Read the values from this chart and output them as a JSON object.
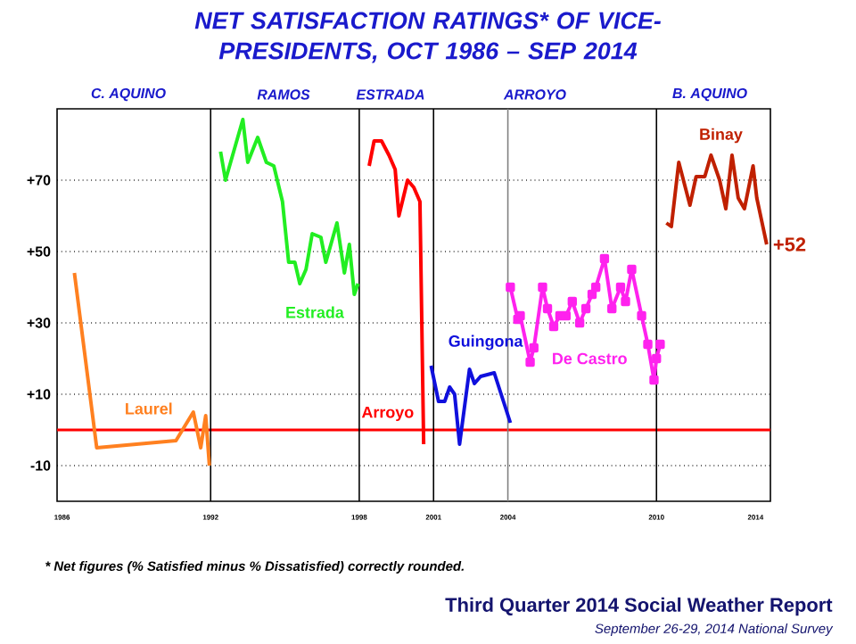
{
  "chart_data": {
    "type": "line",
    "title": "NET SATISFACTION RATINGS* OF VICE-PRESIDENTS, OCT 1986 – SEP 2014",
    "annotations": [
      "C. AQUINO",
      "RAMOS",
      "ESTRADA",
      "ARROYO",
      "B. AQUINO",
      "* Net figures (% Satisfied minus % Dissatisfied) correctly rounded.",
      "Third Quarter 2014 Social Weather Report",
      "September 26-29, 2014 National Survey"
    ],
    "xlim": [
      1985.8,
      2014.6
    ],
    "ylim": [
      -20,
      90
    ],
    "xticks": [
      1986,
      1992,
      1998,
      2001,
      2004,
      2010,
      2014
    ],
    "yticks": [
      -10,
      {
        "value": 10,
        "label": "+10"
      },
      {
        "value": 30,
        "label": "+30"
      },
      {
        "value": 50,
        "label": "+50"
      },
      {
        "value": 70,
        "label": "+70"
      }
    ],
    "grid": "y",
    "ref_lines": [
      {
        "axis": "y",
        "value": 0,
        "color": "#ff0000"
      },
      {
        "axis": "x",
        "value": 1992,
        "color": "#000000"
      },
      {
        "axis": "x",
        "value": 1998,
        "color": "#000000"
      },
      {
        "axis": "x",
        "value": 2001,
        "color": "#000000"
      },
      {
        "axis": "x",
        "value": 2004,
        "color": "#808080"
      },
      {
        "axis": "x",
        "value": 2010,
        "color": "#000000"
      }
    ],
    "series": [
      {
        "name": "Laurel",
        "color": "#ff8020",
        "x": [
          1986.5,
          1987.4,
          1990.6,
          1991.3,
          1991.6,
          1991.8,
          1991.95
        ],
        "values": [
          44,
          -5,
          -3,
          5,
          -5,
          4,
          -10
        ]
      },
      {
        "name": "Estrada",
        "color": "#22ee22",
        "x": [
          1992.4,
          1992.6,
          1993.3,
          1993.5,
          1993.9,
          1994.25,
          1994.55,
          1994.9,
          1995.15,
          1995.4,
          1995.6,
          1995.85,
          1996.1,
          1996.45,
          1996.65,
          1997.1,
          1997.4,
          1997.6,
          1997.8,
          1997.95
        ],
        "values": [
          78,
          70,
          87,
          75,
          82,
          75,
          74,
          64,
          47,
          47,
          41,
          45,
          55,
          54,
          47,
          58,
          44,
          52,
          38,
          41
        ]
      },
      {
        "name": "Arroyo",
        "color": "#ff0000",
        "x": [
          1998.4,
          1998.6,
          1998.9,
          1999.2,
          1999.45,
          1999.6,
          1999.95,
          2000.2,
          2000.45,
          2000.6
        ],
        "values": [
          74,
          81,
          81,
          77,
          73,
          60,
          70,
          68,
          64,
          -4
        ]
      },
      {
        "name": "Guingona",
        "color": "#1010dd",
        "x": [
          2000.9,
          2001.2,
          2001.45,
          2001.65,
          2001.85,
          2002.05,
          2002.45,
          2002.65,
          2002.9,
          2003.45,
          2004.1
        ],
        "values": [
          18,
          8,
          8,
          12,
          10,
          -4,
          17,
          13,
          15,
          16,
          2
        ]
      },
      {
        "name": "De Castro",
        "color": "#ff22ee",
        "marker": "square",
        "x": [
          2004.1,
          2004.4,
          2004.5,
          2004.9,
          2005.05,
          2005.4,
          2005.6,
          2005.85,
          2006.1,
          2006.35,
          2006.6,
          2006.9,
          2007.15,
          2007.4,
          2007.55,
          2007.9,
          2008.2,
          2008.55,
          2008.75,
          2009.0,
          2009.4,
          2009.65,
          2009.9,
          2010.0,
          2010.15
        ],
        "values": [
          40,
          31,
          32,
          19,
          23,
          40,
          34,
          29,
          32,
          32,
          36,
          30,
          34,
          38,
          40,
          48,
          34,
          40,
          36,
          45,
          32,
          24,
          14,
          20,
          24
        ]
      },
      {
        "name": "Binay",
        "color": "#c02000",
        "x": [
          2010.4,
          2010.6,
          2010.9,
          2011.35,
          2011.6,
          2011.95,
          2012.2,
          2012.55,
          2012.8,
          2013.05,
          2013.3,
          2013.55,
          2013.9,
          2014.05,
          2014.45
        ],
        "values": [
          58,
          57,
          75,
          63,
          71,
          71,
          77,
          70,
          62,
          77,
          65,
          62,
          74,
          65,
          52
        ],
        "value_labels": [
          null,
          null,
          null,
          null,
          null,
          null,
          null,
          null,
          null,
          null,
          null,
          null,
          null,
          null,
          "+52"
        ]
      }
    ]
  }
}
